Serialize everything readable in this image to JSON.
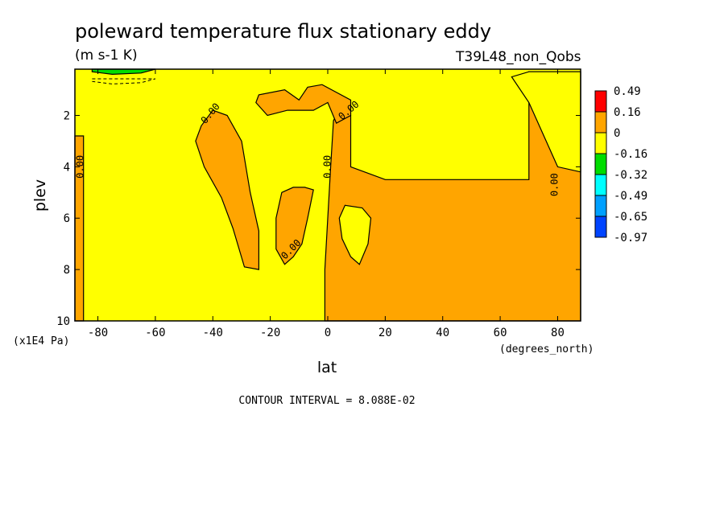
{
  "chart_data": {
    "type": "contour",
    "title": "poleward temperature flux stationary eddy",
    "units": "(m s-1 K)",
    "run_label": "T39L48_non_Qobs",
    "xlabel": "lat",
    "x_units": "(degrees_north)",
    "ylabel": "plev",
    "y_units": "(x1E4 Pa)",
    "xlim": [
      -88,
      88
    ],
    "ylim": [
      10,
      0.2
    ],
    "x_ticks": [
      -80,
      -60,
      -40,
      -20,
      0,
      20,
      40,
      60,
      80
    ],
    "x_tick_labels": [
      "-80",
      "-60",
      "-40",
      "-20",
      "0",
      "20",
      "40",
      "60",
      "80"
    ],
    "y_ticks": [
      2,
      4,
      6,
      8,
      10
    ],
    "y_tick_labels": [
      "2",
      "4",
      "6",
      "8",
      "10"
    ],
    "contour_interval_text": "CONTOUR INTERVAL = 8.088E-02",
    "contour_labels": [
      "0.00",
      "0.00",
      "0.00",
      "0.00",
      "0.00",
      "0.00",
      "0.00",
      "0.00"
    ],
    "colorbar": {
      "labels": [
        "0.49",
        "0.16",
        "0",
        "-0.16",
        "-0.32",
        "-0.49",
        "-0.65",
        "-0.97"
      ],
      "colors": [
        "#ff0000",
        "#ffa500",
        "#ffff00",
        "#00dd00",
        "#00ffff",
        "#00a0ff",
        "#0044ff"
      ]
    },
    "fill_colors": {
      "negative_small": "#ffff00",
      "positive": "#ffa500",
      "negative_mid": "#00dd00"
    },
    "regions": [
      {
        "sign": "positive",
        "points": [
          [
            5,
            1.6
          ],
          [
            8,
            2.0
          ],
          [
            8,
            4.0
          ],
          [
            20,
            4.5
          ],
          [
            40,
            4.5
          ],
          [
            60,
            4.5
          ],
          [
            70,
            4.5
          ],
          [
            70,
            0.3
          ],
          [
            88,
            0.3
          ],
          [
            88,
            10
          ],
          [
            -1,
            10
          ],
          [
            -1,
            8
          ],
          [
            0,
            6
          ],
          [
            1,
            4
          ],
          [
            2,
            2.2
          ]
        ]
      },
      {
        "sign": "positive",
        "points": [
          [
            -44,
            2.4
          ],
          [
            -40,
            1.8
          ],
          [
            -35,
            2.0
          ],
          [
            -30,
            3.0
          ],
          [
            -27,
            5.0
          ],
          [
            -24,
            6.5
          ],
          [
            -24,
            8.0
          ],
          [
            -29,
            7.9
          ],
          [
            -33,
            6.4
          ],
          [
            -37,
            5.2
          ],
          [
            -43,
            4.0
          ],
          [
            -46,
            3.0
          ]
        ]
      },
      {
        "sign": "positive",
        "points": [
          [
            -18,
            6.0
          ],
          [
            -16,
            5.0
          ],
          [
            -12,
            4.8
          ],
          [
            -8,
            4.8
          ],
          [
            -5,
            4.9
          ],
          [
            -7,
            6.0
          ],
          [
            -9,
            7.0
          ],
          [
            -12,
            7.5
          ],
          [
            -15,
            7.8
          ],
          [
            -18,
            7.2
          ]
        ]
      },
      {
        "sign": "positive",
        "points": [
          [
            -25,
            1.5
          ],
          [
            -24,
            1.2
          ],
          [
            -15,
            1.0
          ],
          [
            -10,
            1.4
          ],
          [
            -7,
            0.9
          ],
          [
            -2,
            0.8
          ],
          [
            8,
            1.4
          ],
          [
            8,
            2.0
          ],
          [
            3,
            2.3
          ],
          [
            0,
            1.5
          ],
          [
            -5,
            1.8
          ],
          [
            -14,
            1.8
          ],
          [
            -21,
            2.0
          ]
        ]
      },
      {
        "sign": "positive",
        "points": [
          [
            -88,
            2.8
          ],
          [
            -85,
            2.8
          ],
          [
            -85,
            10
          ],
          [
            -88,
            10
          ]
        ]
      },
      {
        "sign": "negative_small",
        "points": [
          [
            4,
            6.0
          ],
          [
            6,
            5.5
          ],
          [
            12,
            5.6
          ],
          [
            15,
            6.0
          ],
          [
            14,
            7.0
          ],
          [
            11,
            7.8
          ],
          [
            8,
            7.5
          ],
          [
            5,
            6.8
          ]
        ]
      },
      {
        "sign": "negative_small",
        "points": [
          [
            70,
            0.3
          ],
          [
            88,
            0.3
          ],
          [
            88,
            4.2
          ],
          [
            80,
            4.0
          ],
          [
            76,
            3.0
          ],
          [
            70,
            1.5
          ],
          [
            64,
            0.5
          ]
        ]
      },
      {
        "sign": "negative_mid",
        "points": [
          [
            -82,
            0.2
          ],
          [
            -60,
            0.2
          ],
          [
            -65,
            0.35
          ],
          [
            -75,
            0.4
          ],
          [
            -82,
            0.3
          ]
        ]
      }
    ]
  }
}
